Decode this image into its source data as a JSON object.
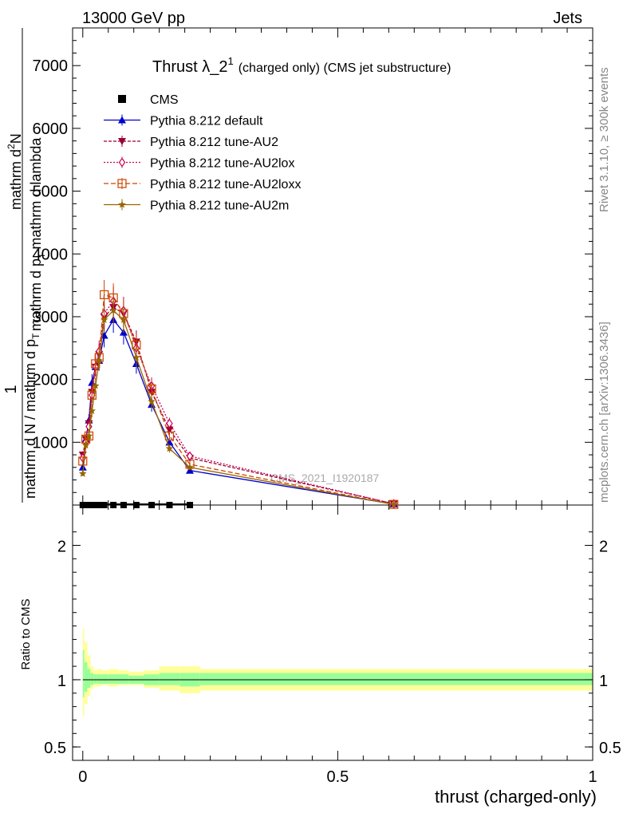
{
  "header": {
    "left": "13000 GeV pp",
    "right": "Jets"
  },
  "side_labels": {
    "rivet": "Rivet 3.1.10, ≥ 300k events",
    "mcplots": "mcplots.cern.ch [arXiv:1306.3436]"
  },
  "watermark": "CMS_2021_I1920187",
  "ratio_ylabel": "Ratio to CMS",
  "colors": {
    "cms": "#000000",
    "default": "#0000cc",
    "au2": "#990033",
    "au2lox": "#cc0055",
    "au2loxx": "#cc4400",
    "au2m": "#996600",
    "band_yellow": "#ffff99",
    "band_green": "#99ff99"
  },
  "chart_data": {
    "type": "line",
    "title": "Thrust λ_2",
    "title_sup": "1",
    "subtitle": "(charged only) (CMS jet substructure)",
    "xlabel": "thrust (charged-only)",
    "ylabel_parts": [
      "1",
      "mathrm d N / mathrm d p",
      "T",
      "mathrm d",
      "2",
      "N",
      "mathrm d p",
      "T",
      "mathrm d lambda"
    ],
    "xlim": [
      -0.02,
      1.0
    ],
    "ylim": [
      0,
      7600
    ],
    "yticks": [
      1000,
      2000,
      3000,
      4000,
      5000,
      6000,
      7000
    ],
    "ytick_labels": [
      "1000",
      "2000",
      "3000",
      "4000",
      "5000",
      "6000",
      "7000"
    ],
    "xticks": [
      0,
      0.5,
      1
    ],
    "xtick_labels": [
      "0",
      "0.5",
      "1"
    ],
    "ratio_ylim": [
      0.4,
      2.3
    ],
    "ratio_yticks": [
      0.5,
      1,
      2
    ],
    "ratio_ytick_labels": [
      "0.5",
      "1",
      "2"
    ],
    "x": [
      0.0,
      0.006,
      0.012,
      0.018,
      0.025,
      0.032,
      0.042,
      0.06,
      0.08,
      0.105,
      0.135,
      0.17,
      0.21,
      0.61
    ],
    "cms_values": [
      0,
      0,
      0,
      0,
      0,
      0,
      0,
      0,
      0,
      0,
      0,
      0,
      0,
      0
    ],
    "series": [
      {
        "name": "Pythia 8.212 default",
        "color": "#0000cc",
        "dash": "",
        "marker": "triangle",
        "values": [
          600,
          1050,
          1350,
          1950,
          2200,
          2300,
          2700,
          2950,
          2750,
          2250,
          1600,
          1000,
          550,
          15
        ]
      },
      {
        "name": "Pythia 8.212 tune-AU2",
        "color": "#990033",
        "dash": "4,2",
        "marker": "triangle-down",
        "values": [
          800,
          1050,
          1300,
          1800,
          2200,
          2400,
          3000,
          3150,
          3050,
          2600,
          1800,
          1200,
          750,
          20
        ]
      },
      {
        "name": "Pythia 8.212 tune-AU2lox",
        "color": "#cc0055",
        "dash": "2,2",
        "marker": "diamond",
        "values": [
          750,
          1000,
          1250,
          1750,
          2200,
          2450,
          3050,
          3250,
          3100,
          2500,
          1900,
          1300,
          780,
          20
        ]
      },
      {
        "name": "Pythia 8.212 tune-AU2loxx",
        "color": "#cc4400",
        "dash": "6,3",
        "marker": "square",
        "values": [
          700,
          1050,
          1100,
          1750,
          2250,
          2350,
          3350,
          3300,
          3050,
          2550,
          1850,
          1100,
          650,
          10
        ]
      },
      {
        "name": "Pythia 8.212 tune-AU2m",
        "color": "#996600",
        "dash": "",
        "marker": "star",
        "values": [
          500,
          950,
          1100,
          1500,
          1900,
          2300,
          2950,
          3100,
          2950,
          2350,
          1650,
          900,
          600,
          10
        ]
      }
    ],
    "legend": [
      "CMS",
      "Pythia 8.212 default",
      "Pythia 8.212 tune-AU2",
      "Pythia 8.212 tune-AU2lox",
      "Pythia 8.212 tune-AU2loxx",
      "Pythia 8.212 tune-AU2m"
    ],
    "ratio_bands": {
      "edges": [
        0.0,
        0.003,
        0.009,
        0.015,
        0.021,
        0.028,
        0.037,
        0.05,
        0.07,
        0.09,
        0.12,
        0.15,
        0.19,
        0.23,
        1.0
      ],
      "yellow": [
        [
          0.73,
          1.38
        ],
        [
          0.82,
          1.28
        ],
        [
          0.88,
          1.18
        ],
        [
          0.93,
          1.1
        ],
        [
          0.95,
          1.07
        ],
        [
          0.95,
          1.08
        ],
        [
          0.96,
          1.07
        ],
        [
          0.95,
          1.08
        ],
        [
          0.96,
          1.07
        ],
        [
          0.96,
          1.06
        ],
        [
          0.94,
          1.07
        ],
        [
          0.92,
          1.1
        ],
        [
          0.9,
          1.1
        ],
        [
          0.92,
          1.08
        ]
      ],
      "green": [
        [
          0.87,
          1.22
        ],
        [
          0.91,
          1.13
        ],
        [
          0.94,
          1.08
        ],
        [
          0.96,
          1.05
        ],
        [
          0.97,
          1.04
        ],
        [
          0.97,
          1.04
        ],
        [
          0.97,
          1.04
        ],
        [
          0.97,
          1.04
        ],
        [
          0.97,
          1.04
        ],
        [
          0.97,
          1.03
        ],
        [
          0.96,
          1.04
        ],
        [
          0.96,
          1.05
        ],
        [
          0.95,
          1.05
        ],
        [
          0.96,
          1.05
        ]
      ]
    }
  }
}
